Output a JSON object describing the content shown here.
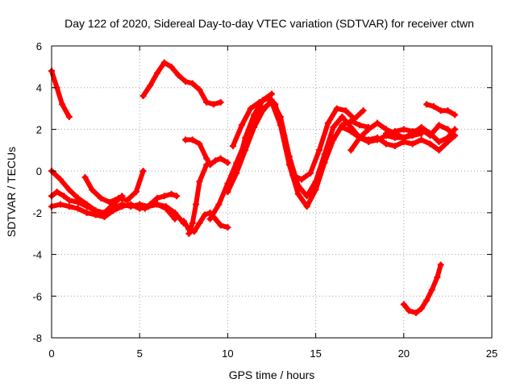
{
  "chart_data": {
    "type": "line",
    "title": "Day 122 of 2020, Sidereal Day-to-day VTEC variation (SDTVAR) for receiver ctwn",
    "xlabel": "GPS time / hours",
    "ylabel": "SDTVAR / TECUs",
    "xlim": [
      0,
      25
    ],
    "ylim": [
      -8,
      6
    ],
    "xticks": [
      0,
      5,
      10,
      15,
      20,
      25
    ],
    "yticks": [
      -8,
      -6,
      -4,
      -2,
      0,
      2,
      4,
      6
    ],
    "xtick_labels": [
      "0",
      "5",
      "10",
      "15",
      "20",
      "25"
    ],
    "ytick_labels": [
      "-8",
      "-6",
      "-4",
      "-2",
      "0",
      "2",
      "4",
      "6"
    ],
    "grid": true,
    "legend": "none",
    "color": "#ff0000",
    "marker": "plus",
    "series": [
      {
        "name": "s1",
        "x": [
          0.0,
          0.3,
          0.6,
          1.0
        ],
        "y": [
          4.8,
          4.0,
          3.2,
          2.6
        ]
      },
      {
        "name": "s2",
        "x": [
          5.2,
          5.6,
          6.0,
          6.4,
          6.8,
          7.2,
          7.6,
          8.0,
          8.4,
          8.8,
          9.2,
          9.6
        ],
        "y": [
          3.6,
          4.1,
          4.7,
          5.2,
          5.0,
          4.6,
          4.3,
          4.2,
          3.9,
          3.3,
          3.2,
          3.3
        ]
      },
      {
        "name": "s3",
        "x": [
          0.0,
          0.5,
          1.0,
          1.5,
          2.0,
          2.5,
          3.0,
          3.5,
          4.0,
          4.5,
          5.0,
          5.5,
          6.0,
          6.5,
          7.0
        ],
        "y": [
          0.0,
          -0.4,
          -0.9,
          -1.3,
          -1.6,
          -1.9,
          -2.0,
          -1.8,
          -1.6,
          -1.7,
          -1.6,
          -1.7,
          -1.6,
          -1.8,
          -2.3
        ]
      },
      {
        "name": "s4",
        "x": [
          0.0,
          0.5,
          1.0,
          1.5,
          2.0,
          2.5,
          3.0,
          3.5,
          4.0,
          4.5,
          5.0,
          5.5,
          6.0,
          6.5,
          7.0,
          7.5
        ],
        "y": [
          -1.7,
          -1.6,
          -1.7,
          -1.8,
          -2.0,
          -2.1,
          -2.2,
          -1.9,
          -1.7,
          -1.6,
          -1.8,
          -1.7,
          -1.6,
          -1.7,
          -2.0,
          -2.5
        ]
      },
      {
        "name": "s5",
        "x": [
          0.0,
          0.3,
          0.7,
          1.0,
          1.5,
          2.0,
          2.5,
          3.0,
          3.5,
          4.0
        ],
        "y": [
          -1.2,
          -1.0,
          -1.2,
          -1.4,
          -1.5,
          -1.7,
          -1.9,
          -2.0,
          -1.6,
          -1.2
        ]
      },
      {
        "name": "s6",
        "x": [
          1.9,
          2.3,
          2.8,
          3.3,
          3.8,
          4.3,
          4.8,
          5.2
        ],
        "y": [
          -0.3,
          -0.9,
          -1.3,
          -1.5,
          -1.3,
          -1.4,
          -1.0,
          0.0
        ]
      },
      {
        "name": "s7",
        "x": [
          5.3,
          5.6,
          6.0,
          6.4,
          6.8,
          7.1
        ],
        "y": [
          -1.8,
          -1.6,
          -1.3,
          -1.2,
          -1.1,
          -1.2
        ]
      },
      {
        "name": "s8",
        "x": [
          7.5,
          7.8,
          8.1,
          8.4,
          8.7,
          9.0,
          9.3,
          9.6,
          10.0
        ],
        "y": [
          -2.4,
          -2.8,
          -2.9,
          -2.5,
          -2.1,
          -2.0,
          -2.3,
          -2.6,
          -2.7
        ]
      },
      {
        "name": "s9",
        "x": [
          7.6,
          8.0,
          8.4,
          8.8,
          9.0,
          9.3,
          9.6,
          10.0
        ],
        "y": [
          1.5,
          1.5,
          1.3,
          0.6,
          0.3,
          0.5,
          0.6,
          0.4
        ]
      },
      {
        "name": "s10",
        "x": [
          7.8,
          8.0,
          8.2,
          8.4,
          8.8
        ],
        "y": [
          -3.0,
          -2.5,
          -1.6,
          -0.5,
          0.3
        ]
      },
      {
        "name": "s11",
        "x": [
          9.0,
          9.5,
          10.0,
          10.5,
          11.0,
          11.5,
          12.0,
          12.5,
          13.0,
          13.5,
          14.0,
          14.5,
          15.0,
          15.5,
          16.0,
          16.5,
          17.0,
          17.5,
          18.0
        ],
        "y": [
          -2.3,
          -1.6,
          -0.6,
          0.4,
          1.4,
          2.3,
          3.0,
          3.3,
          2.2,
          0.3,
          -1.1,
          -1.7,
          -0.9,
          0.4,
          1.5,
          2.2,
          2.4,
          2.2,
          2.1
        ]
      },
      {
        "name": "s12",
        "x": [
          10.0,
          10.5,
          11.0,
          11.5,
          12.0,
          12.5,
          13.0,
          13.5,
          14.0,
          14.5,
          15.0,
          15.5,
          16.0,
          16.5,
          17.0,
          17.5,
          18.0,
          18.5,
          19.0,
          19.5,
          20.0,
          20.5,
          21.0
        ],
        "y": [
          -1.0,
          -0.1,
          1.0,
          2.1,
          2.9,
          3.4,
          2.6,
          0.7,
          -0.7,
          -1.2,
          -0.5,
          0.8,
          2.1,
          2.6,
          2.1,
          1.6,
          1.4,
          1.5,
          1.7,
          1.6,
          1.6,
          1.7,
          1.8
        ]
      },
      {
        "name": "s13",
        "x": [
          10.3,
          10.8,
          11.3,
          11.8,
          12.3,
          12.7,
          13.2,
          13.7,
          14.2,
          14.7,
          15.2,
          15.7,
          16.2,
          16.7,
          17.2,
          17.7
        ],
        "y": [
          1.2,
          2.2,
          3.0,
          3.3,
          3.5,
          3.2,
          1.7,
          -0.2,
          -0.4,
          -0.1,
          1.0,
          2.3,
          3.0,
          2.9,
          2.5,
          2.9
        ]
      },
      {
        "name": "s14",
        "x": [
          10.6,
          11.0,
          11.5,
          12.0,
          12.5
        ],
        "y": [
          0.3,
          1.6,
          2.7,
          3.4,
          3.7
        ]
      },
      {
        "name": "s15",
        "x": [
          16.5,
          17.0,
          17.5,
          18.0,
          18.5,
          19.0,
          19.5,
          20.0,
          20.5,
          21.0,
          21.5,
          22.0,
          22.5,
          22.9
        ],
        "y": [
          2.1,
          1.9,
          1.6,
          1.5,
          1.6,
          1.3,
          1.2,
          1.4,
          1.3,
          1.5,
          1.3,
          1.0,
          1.4,
          1.7
        ]
      },
      {
        "name": "s16",
        "x": [
          17.0,
          17.5,
          18.0,
          18.5,
          19.0,
          19.5,
          20.0,
          20.5,
          21.0,
          21.5,
          22.0,
          22.5,
          22.9
        ],
        "y": [
          1.0,
          1.6,
          2.0,
          2.3,
          2.0,
          1.8,
          1.6,
          1.8,
          2.1,
          1.8,
          1.4,
          1.6,
          2.0
        ]
      },
      {
        "name": "s17",
        "x": [
          19.0,
          19.5,
          20.0,
          20.5,
          21.0,
          21.5,
          22.0,
          22.5,
          22.9
        ],
        "y": [
          1.8,
          1.9,
          2.0,
          1.9,
          2.0,
          1.7,
          2.2,
          2.0,
          1.7
        ]
      },
      {
        "name": "s18",
        "x": [
          21.3,
          21.7,
          22.1,
          22.5,
          22.9
        ],
        "y": [
          3.2,
          3.1,
          2.9,
          2.9,
          2.7
        ]
      },
      {
        "name": "s19",
        "x": [
          20.0,
          20.3,
          20.7,
          21.0,
          21.3,
          21.6,
          21.9,
          22.1
        ],
        "y": [
          -6.4,
          -6.7,
          -6.8,
          -6.6,
          -6.2,
          -5.7,
          -5.1,
          -4.5
        ]
      }
    ]
  }
}
